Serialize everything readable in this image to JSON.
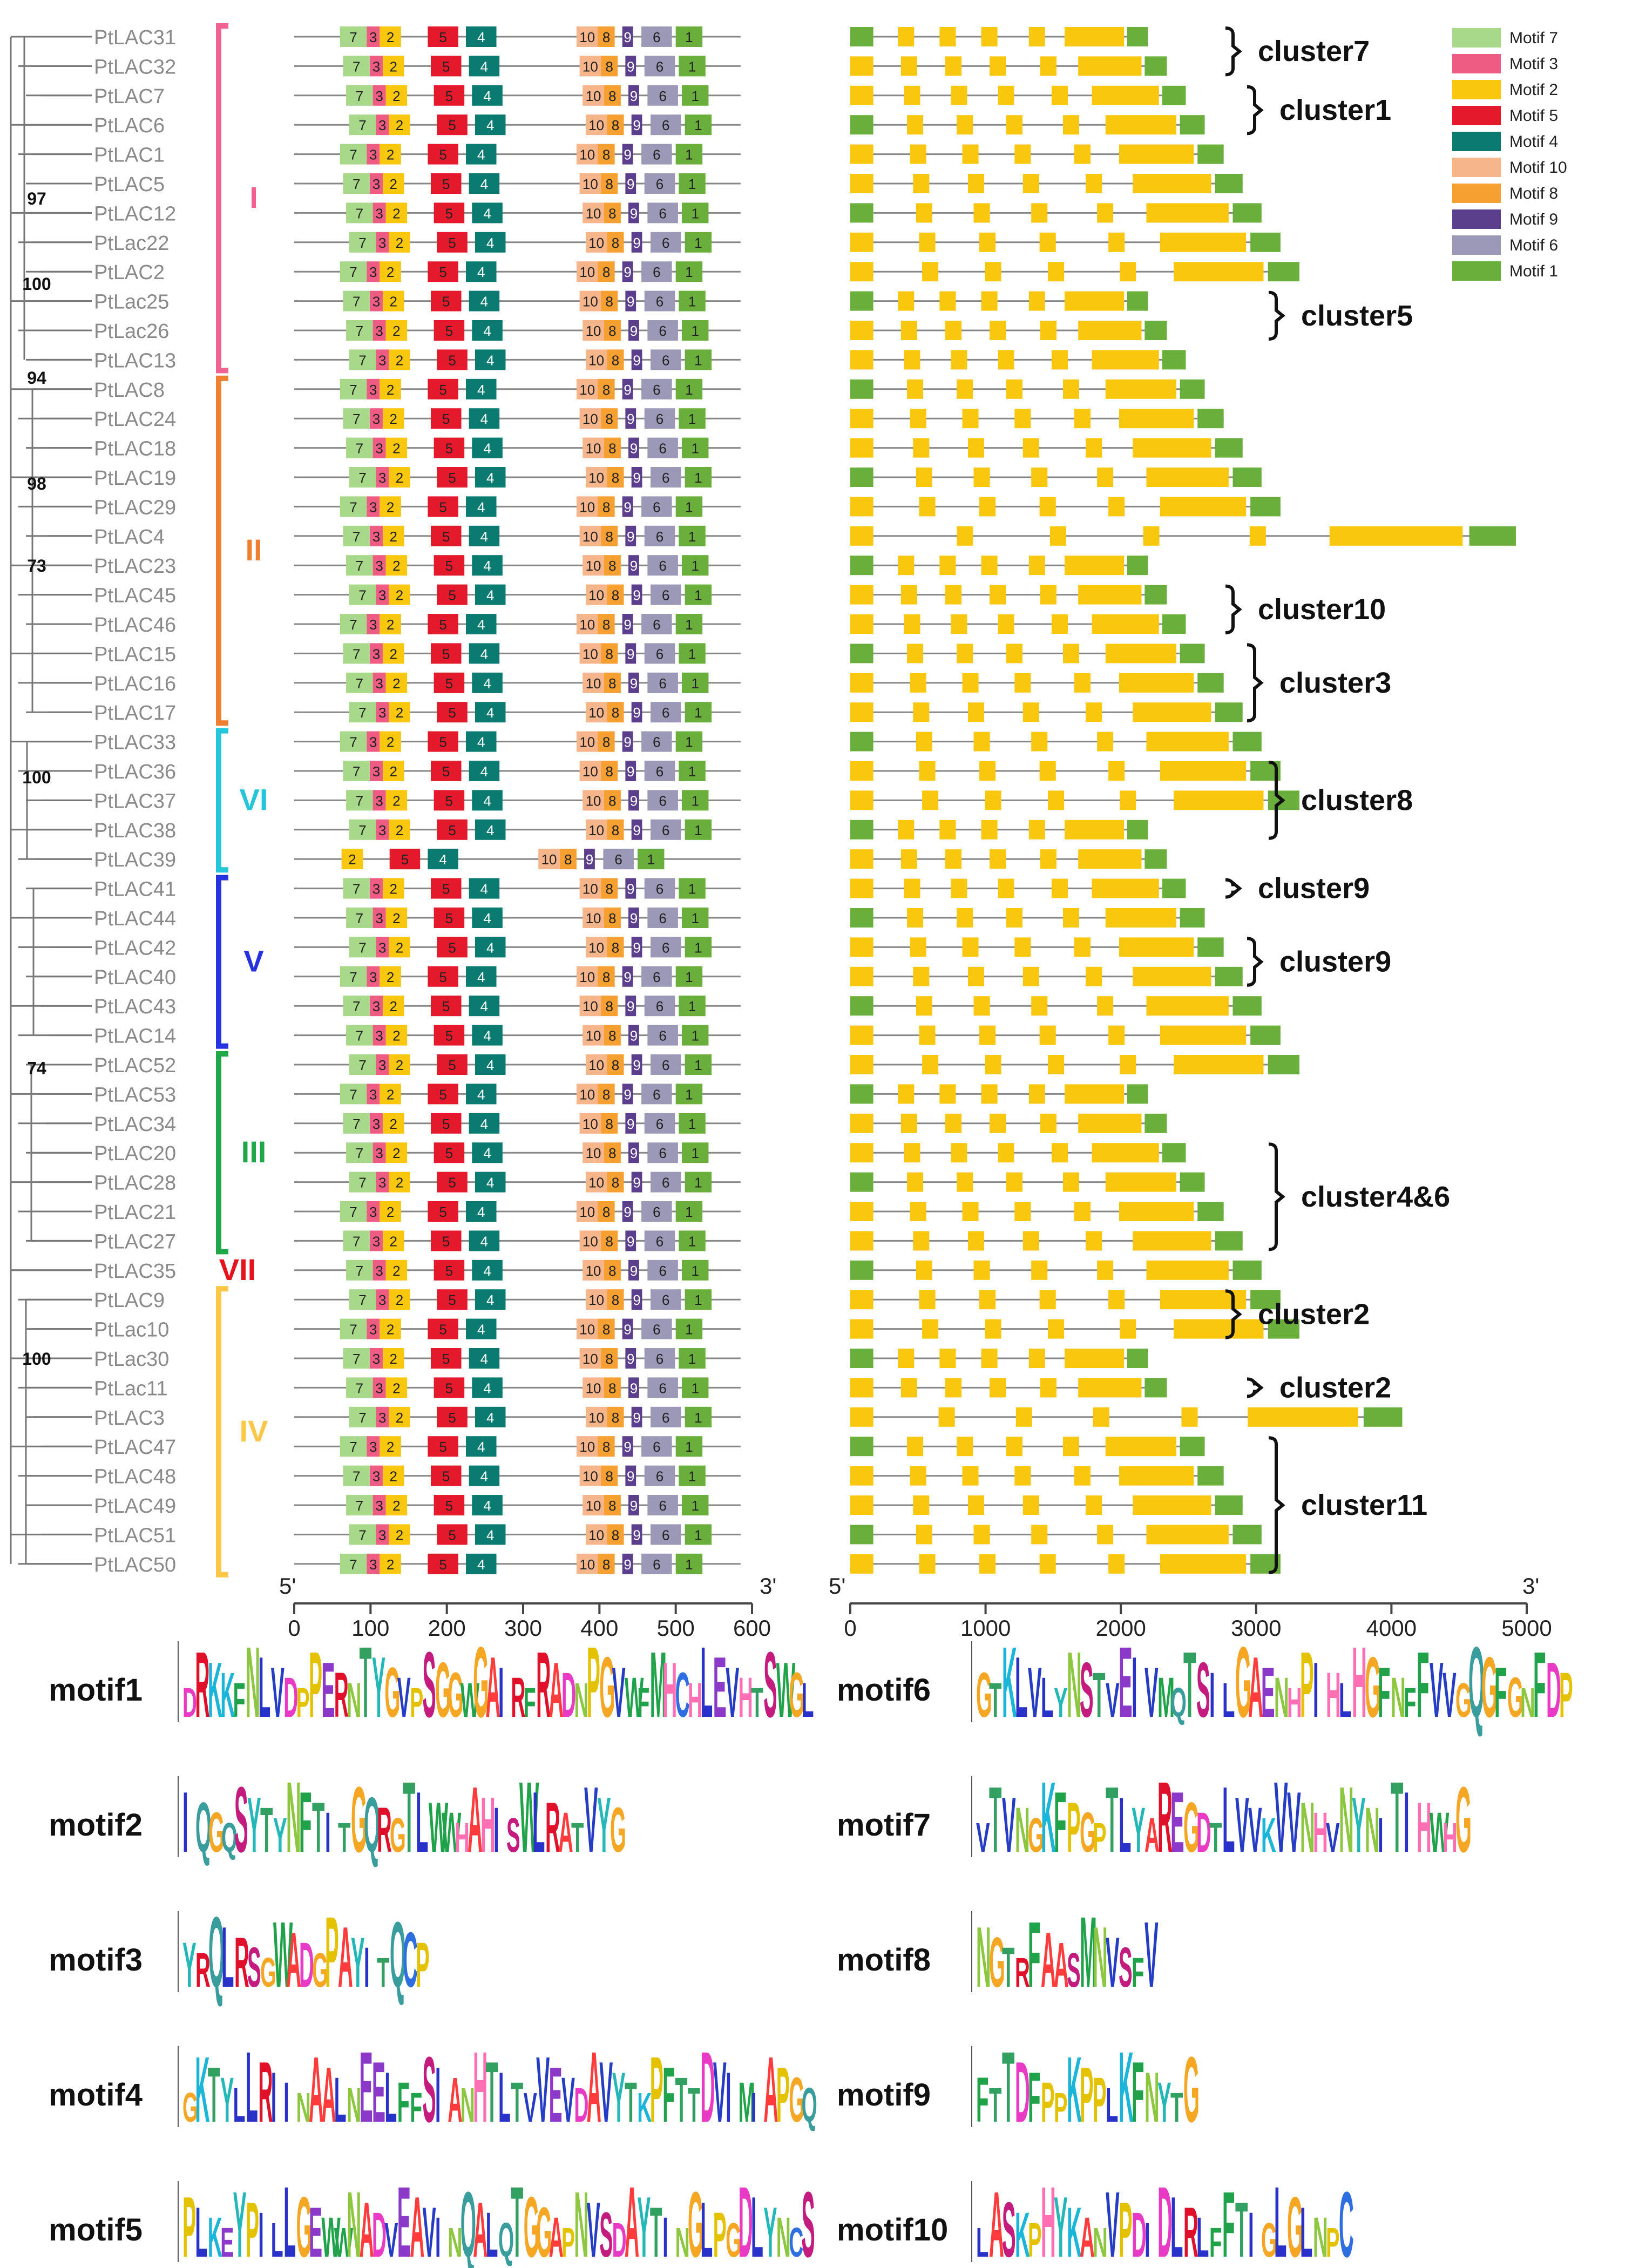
{
  "genes": [
    "PtLAC31",
    "PtLAC32",
    "PtLAC7",
    "PtLAC6",
    "PtLAC1",
    "PtLAC5",
    "PtLAC12",
    "PtLac22",
    "PtLAC2",
    "PtLac25",
    "PtLac26",
    "PtLAC13",
    "PtLAC8",
    "PtLAC24",
    "PtLAC18",
    "PtLAC19",
    "PtLAC29",
    "PtLAC4",
    "PtLAC23",
    "PtLAC45",
    "PtLAC46",
    "PtLAC15",
    "PtLAC16",
    "PtLAC17",
    "PtLAC33",
    "PtLAC36",
    "PtLAC37",
    "PtLAC38",
    "PtLAC39",
    "PtLAC41",
    "PtLAC44",
    "PtLAC42",
    "PtLAC40",
    "PtLAC43",
    "PtLAC14",
    "PtLAC52",
    "PtLAC53",
    "PtLAC34",
    "PtLAC20",
    "PtLAC28",
    "PtLAC21",
    "PtLAC27",
    "PtLAC35",
    "PtLAC9",
    "PtLac10",
    "PtLac30",
    "PtLac11",
    "PtLAC3",
    "PtLAC47",
    "PtLAC48",
    "PtLAC49",
    "PtLAC51",
    "PtLAC50"
  ],
  "bootstrap": [
    {
      "value": "97",
      "row": 5.5
    },
    {
      "value": "100",
      "row": 8.4
    },
    {
      "value": "94",
      "row": 11.6
    },
    {
      "value": "98",
      "row": 15.2
    },
    {
      "value": "73",
      "row": 18.0
    },
    {
      "value": "100",
      "row": 25.2
    },
    {
      "value": "74",
      "row": 35.1
    },
    {
      "value": "100",
      "row": 45.0
    }
  ],
  "groups": [
    {
      "label": "I",
      "color": "#f06292",
      "start": 0,
      "end": 11
    },
    {
      "label": "II",
      "color": "#f08030",
      "start": 12,
      "end": 23
    },
    {
      "label": "VI",
      "color": "#26c6da",
      "start": 24,
      "end": 28
    },
    {
      "label": "V",
      "color": "#2632e0",
      "start": 29,
      "end": 34
    },
    {
      "label": "III",
      "color": "#1fa84a",
      "start": 35,
      "end": 41
    },
    {
      "label": "VII",
      "color": "#e3141e",
      "start": 42,
      "end": 42
    },
    {
      "label": "IV",
      "color": "#fcc647",
      "start": 43,
      "end": 52
    }
  ],
  "motif_axis": {
    "prime5": "5'",
    "prime3": "3'",
    "ticks": [
      "0",
      "100",
      "200",
      "300",
      "400",
      "500",
      "600"
    ],
    "range": [
      0,
      600
    ]
  },
  "gene_axis": {
    "prime5": "5'",
    "prime3": "3'",
    "ticks": [
      "0",
      "1000",
      "2000",
      "3000",
      "4000",
      "5000"
    ],
    "range": [
      0,
      5000
    ]
  },
  "legend": [
    {
      "label": "Motif 7",
      "color": "#a8d98a"
    },
    {
      "label": "Motif 3",
      "color": "#ee5c84"
    },
    {
      "label": "Motif 2",
      "color": "#f9c80e"
    },
    {
      "label": "Motif 5",
      "color": "#e41a2c"
    },
    {
      "label": "Motif 4",
      "color": "#0b7a70"
    },
    {
      "label": "Motif 10",
      "color": "#f7b58c"
    },
    {
      "label": "Motif 8",
      "color": "#f5a030"
    },
    {
      "label": "Motif 9",
      "color": "#5b3f8c"
    },
    {
      "label": "Motif 6",
      "color": "#9b98b8"
    },
    {
      "label": "Motif 1",
      "color": "#6aae3c"
    }
  ],
  "clusters": [
    {
      "label": "cluster7",
      "start": 0,
      "end": 1
    },
    {
      "label": "cluster1",
      "start": 2,
      "end": 3
    },
    {
      "label": "cluster5",
      "start": 9,
      "end": 10
    },
    {
      "label": "cluster10",
      "start": 19,
      "end": 20
    },
    {
      "label": "cluster3",
      "start": 21,
      "end": 23
    },
    {
      "label": "cluster8",
      "start": 25,
      "end": 27
    },
    {
      "label": "cluster9",
      "start": 29,
      "end": 29
    },
    {
      "label": "cluster9",
      "start": 31,
      "end": 32
    },
    {
      "label": "cluster4&6",
      "start": 38,
      "end": 41
    },
    {
      "label": "cluster2",
      "start": 43,
      "end": 44
    },
    {
      "label": "cluster2",
      "start": 46,
      "end": 46
    },
    {
      "label": "cluster11",
      "start": 48,
      "end": 52
    }
  ],
  "logos": [
    {
      "label": "motif1",
      "seq": "DRKKFNLVDPPERNTYGVPSGGWGAIRFRADNPGVWFMHCHLEVHTSWGL"
    },
    {
      "label": "motif6",
      "seq": "GTKLVLYNSTVEIVMQTSILGAENHPIHLHGFNFFVVGQGFGNFDP"
    },
    {
      "label": "motif2",
      "seq": "IQGQSYTYNFTITGQRGTLWWHAHISWLRATVYG"
    },
    {
      "label": "motif7",
      "seq": "VTVNGKFPGPTLYAREGDTLVVKVVNHVNYNITIHWHG"
    },
    {
      "label": "motif3",
      "seq": "YRQLRSGWADGPAYITQCP"
    },
    {
      "label": "motif8",
      "seq": "NGTRFAASMNVSFV"
    },
    {
      "label": "motif4",
      "seq": "GKTYLLRIINAALNEELFFSIANHTLTVVEVDAVYTKPFTTDVIMIAPGQ"
    },
    {
      "label": "motif9",
      "seq": "FTTDFPPKPPLKFNYTG"
    },
    {
      "label": "motif5",
      "seq": "PLKEYPILLGEWWNADVEAVINQALQTGGAPNVSDAYTINGLPGDLYNCS"
    },
    {
      "label": "motif10",
      "seq": "LASKPHYKANVPDIDLRLFFTIGLGLNPC"
    }
  ]
}
